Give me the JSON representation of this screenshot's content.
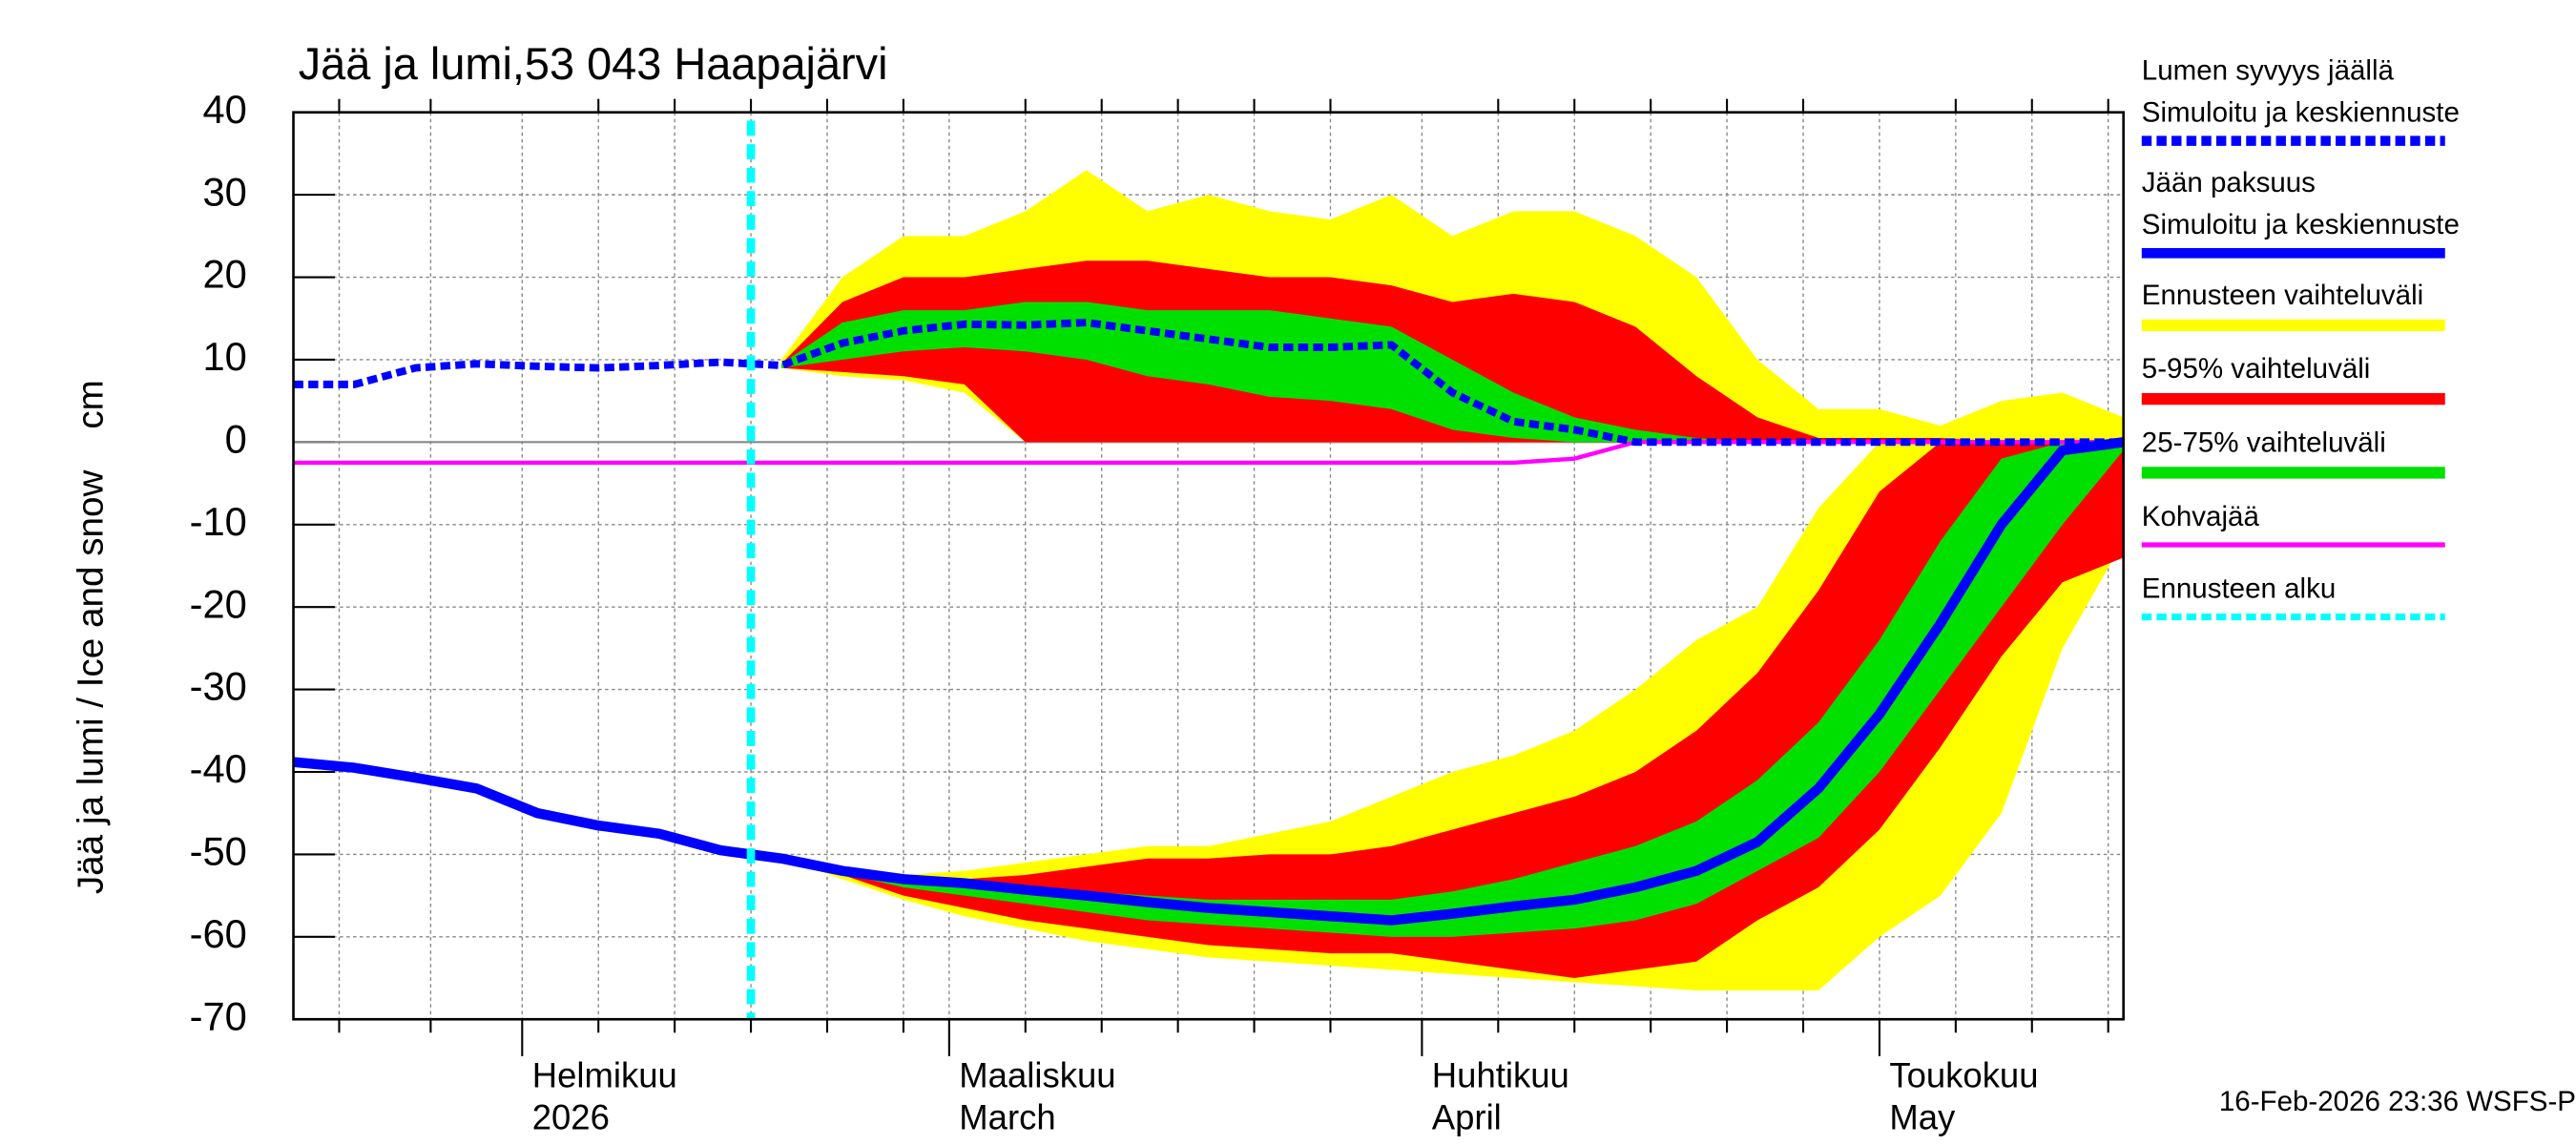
{
  "chart_data": {
    "type": "ice_snow_bands",
    "title": "Jää ja lumi,53 043 Haapajärvi",
    "ylabel": "Jää ja lumi / Ice and snow    cm",
    "footer": "16-Feb-2026 23:36 WSFS-P",
    "x": [
      17,
      21,
      25,
      29,
      33,
      37,
      41,
      45,
      49,
      53,
      57,
      61,
      65,
      69,
      73,
      77,
      81,
      85,
      89,
      93,
      97,
      101,
      105,
      109,
      113,
      117,
      121,
      125,
      129,
      133,
      137
    ],
    "xlim": [
      17,
      137
    ],
    "xticks": [
      {
        "value": 32,
        "label": [
          "Helmikuu",
          "2026"
        ]
      },
      {
        "value": 60,
        "label": [
          "Maaliskuu",
          "March"
        ]
      },
      {
        "value": 91,
        "label": [
          "Huhtikuu",
          "April"
        ]
      },
      {
        "value": 121,
        "label": [
          "Toukokuu",
          "May"
        ]
      }
    ],
    "xgrid": [
      20,
      26,
      37,
      42,
      47,
      52,
      57,
      65,
      70,
      75,
      80,
      85,
      96,
      101,
      106,
      111,
      116,
      126,
      131,
      136
    ],
    "ylim": [
      -70,
      40
    ],
    "yticks": [
      -70,
      -60,
      -50,
      -40,
      -30,
      -20,
      -10,
      0,
      10,
      20,
      30,
      40
    ],
    "grid": true,
    "series": [
      {
        "name": [
          "Lumen syvyys jäällä",
          "Simuloitu ja keskiennuste"
        ],
        "color": "#0000ff",
        "dash": true,
        "values": [
          7,
          7,
          9,
          9.5,
          9.2,
          9,
          9.3,
          9.7,
          9.3,
          12,
          13.5,
          14.3,
          14.2,
          14.5,
          13.5,
          12.5,
          11.5,
          11.5,
          11.8,
          6,
          2.5,
          1.5,
          0,
          0,
          0,
          0,
          0,
          0,
          0,
          0,
          0
        ]
      },
      {
        "name": [
          "Jään paksuus",
          "Simuloitu ja keskiennuste"
        ],
        "color": "#0000ff",
        "dash": false,
        "values": [
          -38.8,
          -39.5,
          -40.7,
          -42,
          -45,
          -46.5,
          -47.5,
          -49.5,
          -50.5,
          -52,
          -53,
          -53.5,
          -54.3,
          -55,
          -55.8,
          -56.5,
          -57,
          -57.5,
          -58,
          -57.2,
          -56.3,
          -55.5,
          -54,
          -52,
          -48.5,
          -42,
          -33,
          -22,
          -10,
          -1,
          0
        ]
      }
    ],
    "bands": [
      {
        "name": "Ennusteen vaihteluväli",
        "color": "#ffff00",
        "snow_high": [
          null,
          null,
          null,
          null,
          null,
          null,
          null,
          null,
          10,
          20,
          25,
          25,
          28,
          33,
          28,
          30,
          28,
          27,
          30,
          25,
          28,
          28,
          25,
          20,
          10,
          4,
          4,
          2,
          5,
          6,
          3
        ],
        "snow_low": [
          null,
          null,
          null,
          null,
          null,
          null,
          null,
          null,
          9,
          8,
          7.5,
          6,
          0,
          0,
          0,
          0,
          0,
          0,
          0,
          0,
          0,
          0,
          0,
          0,
          0,
          0,
          0,
          0,
          0,
          0,
          0
        ],
        "ice_high": [
          null,
          null,
          null,
          null,
          null,
          null,
          null,
          null,
          -50.5,
          -51.5,
          -52.5,
          -52,
          -51,
          -50,
          -49,
          -49,
          -47.5,
          -46,
          -43,
          -40,
          -38,
          -35,
          -30,
          -24,
          -20,
          -8,
          0,
          0,
          0,
          0,
          0
        ],
        "ice_low": [
          null,
          null,
          null,
          null,
          null,
          null,
          null,
          null,
          -50.5,
          -53,
          -55.5,
          -57.5,
          -59,
          -60.5,
          -61.5,
          -62.5,
          -63,
          -63.5,
          -64,
          -64.5,
          -65,
          -65.5,
          -66,
          -66.5,
          -66.5,
          -66.5,
          -60,
          -55,
          -45,
          -25,
          -12
        ]
      },
      {
        "name": "5-95% vaihteluväli",
        "color": "#ff0000",
        "snow_high": [
          null,
          null,
          null,
          null,
          null,
          null,
          null,
          null,
          9.5,
          17,
          20,
          20,
          21,
          22,
          22,
          21,
          20,
          20,
          19,
          17,
          18,
          17,
          14,
          8,
          3,
          0.5,
          0.5,
          0.5,
          0,
          0,
          0
        ],
        "snow_low": [
          null,
          null,
          null,
          null,
          null,
          null,
          null,
          null,
          9,
          8.5,
          8,
          7,
          0,
          0,
          0,
          0,
          0,
          0,
          0,
          0,
          0,
          0,
          0,
          0,
          0,
          0,
          0,
          0,
          0,
          0,
          0
        ],
        "ice_high": [
          null,
          null,
          null,
          null,
          null,
          null,
          null,
          null,
          -50.5,
          -51.8,
          -52.5,
          -53,
          -52.5,
          -51.5,
          -50.5,
          -50.5,
          -50,
          -50,
          -49,
          -47,
          -45,
          -43,
          -40,
          -35,
          -28,
          -18,
          -6,
          0,
          0,
          0,
          0
        ],
        "ice_low": [
          null,
          null,
          null,
          null,
          null,
          null,
          null,
          null,
          -50.5,
          -52.5,
          -55,
          -56.5,
          -58,
          -59,
          -60,
          -61,
          -61.5,
          -62,
          -62,
          -63,
          -64,
          -65,
          -64,
          -63,
          -58,
          -54,
          -47,
          -37,
          -26,
          -17,
          -14
        ]
      },
      {
        "name": "25-75% vaihteluväli",
        "color": "#00e000",
        "snow_high": [
          null,
          null,
          null,
          null,
          null,
          null,
          null,
          null,
          9.5,
          14.5,
          16,
          16,
          17,
          17,
          16,
          16,
          16,
          15,
          14,
          10,
          6,
          3,
          1.5,
          0.5,
          0,
          0,
          0,
          0,
          0,
          0,
          0
        ],
        "snow_low": [
          null,
          null,
          null,
          null,
          null,
          null,
          null,
          null,
          9,
          10,
          11,
          11.5,
          11,
          10,
          8,
          7,
          5.5,
          5,
          4,
          1.5,
          0.5,
          0,
          0,
          0,
          0,
          0,
          0,
          0,
          0,
          0,
          0
        ],
        "ice_high": [
          null,
          null,
          null,
          null,
          null,
          null,
          null,
          null,
          -50.5,
          -52,
          -53,
          -53.5,
          -54,
          -54.5,
          -55,
          -55.5,
          -55.5,
          -55.5,
          -55.5,
          -54.5,
          -53,
          -51,
          -49,
          -46,
          -41,
          -34,
          -24,
          -12,
          -2,
          0,
          0
        ],
        "ice_low": [
          null,
          null,
          null,
          null,
          null,
          null,
          null,
          null,
          -50.5,
          -52.3,
          -54,
          -55,
          -56,
          -57,
          -58,
          -58.5,
          -59,
          -59.5,
          -60,
          -60,
          -59.5,
          -59,
          -58,
          -56,
          -52,
          -48,
          -40,
          -30,
          -20,
          -10,
          -1
        ]
      }
    ],
    "slush": {
      "name": "Kohvajää",
      "color": "#ff00ff",
      "values": [
        -2.5,
        -2.5,
        -2.5,
        -2.5,
        -2.5,
        -2.5,
        -2.5,
        -2.5,
        -2.5,
        -2.5,
        -2.5,
        -2.5,
        -2.5,
        -2.5,
        -2.5,
        -2.5,
        -2.5,
        -2.5,
        -2.5,
        -2.5,
        -2.5,
        -2,
        0,
        0,
        0,
        0,
        0,
        0,
        0,
        0,
        0
      ]
    },
    "forecast_start": {
      "name": "Ennusteen alku",
      "color": "#00ffff",
      "x": 47
    }
  }
}
